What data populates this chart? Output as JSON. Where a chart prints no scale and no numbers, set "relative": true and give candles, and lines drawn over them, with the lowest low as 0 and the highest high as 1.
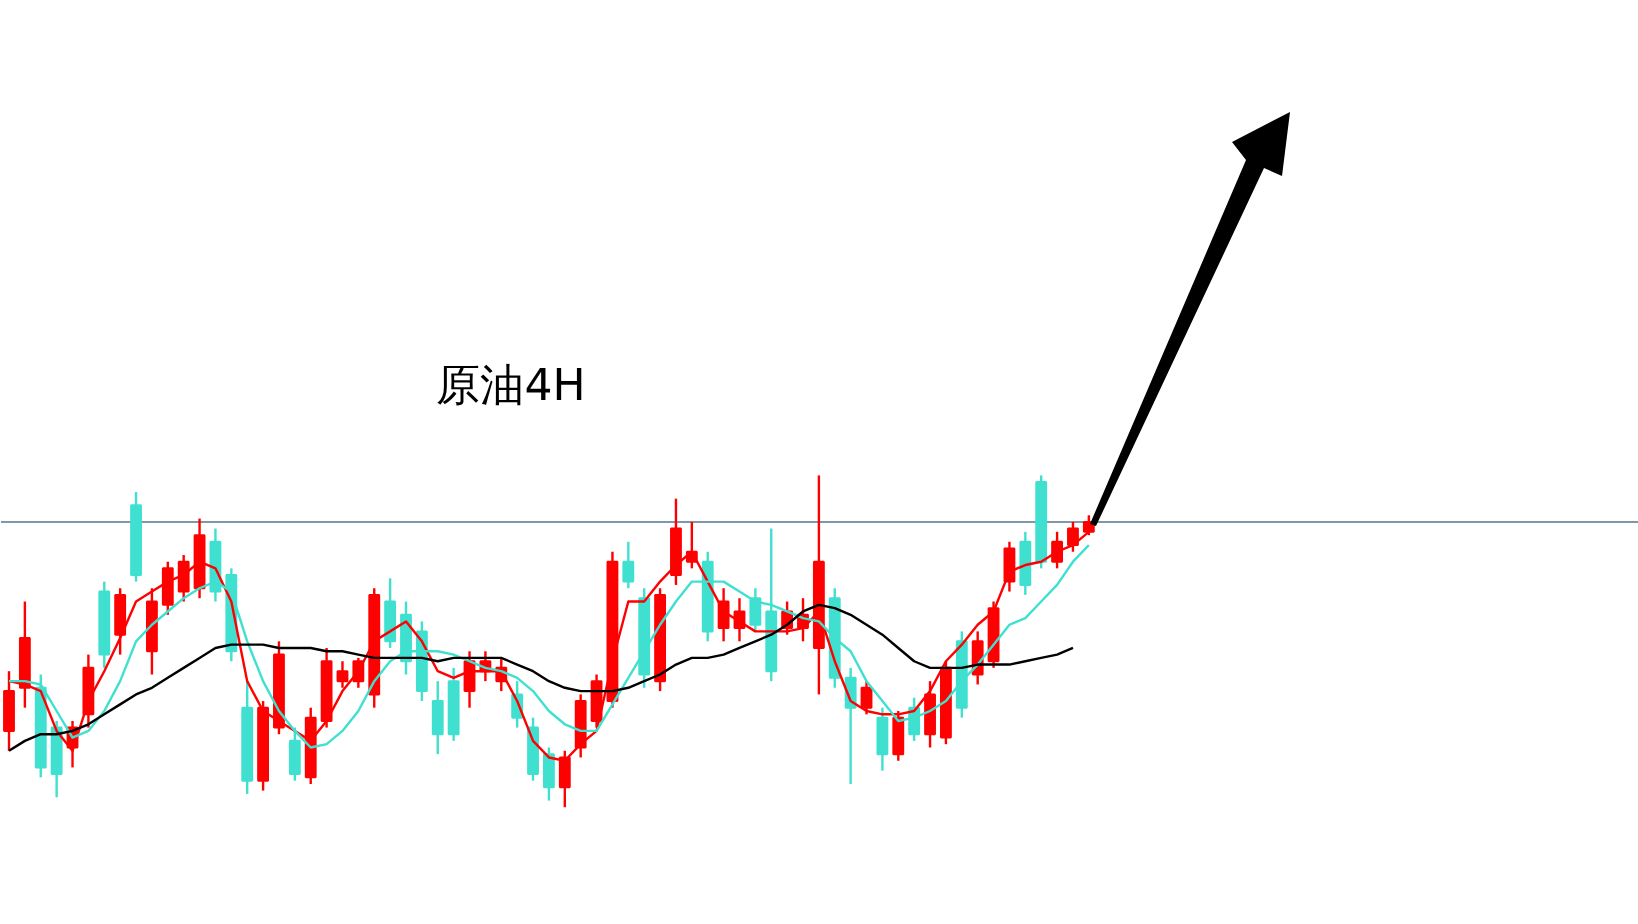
{
  "chart_data": {
    "type": "candlestick",
    "title": "原油4H",
    "relative": true,
    "categories": [
      null,
      null,
      null,
      null,
      null,
      null,
      null,
      null,
      null,
      null,
      null,
      null,
      null,
      null,
      null,
      null,
      null,
      null,
      null,
      null,
      null,
      null,
      null,
      null,
      null,
      null,
      null,
      null,
      null,
      null,
      null,
      null,
      null,
      null,
      null,
      null,
      null,
      null,
      null,
      null,
      null,
      null,
      null,
      null,
      null,
      null,
      null,
      null,
      null,
      null,
      null,
      null,
      null,
      null,
      null,
      null,
      null,
      null,
      null,
      null,
      null,
      null,
      null,
      null,
      null,
      null,
      null,
      null,
      null
    ],
    "ohlc": [
      [
        0.23,
        0.41,
        0.17,
        0.35
      ],
      [
        0.36,
        0.62,
        0.3,
        0.51
      ],
      [
        0.36,
        0.4,
        0.09,
        0.12
      ],
      [
        0.24,
        0.26,
        0.03,
        0.1
      ],
      [
        0.18,
        0.26,
        0.12,
        0.24
      ],
      [
        0.28,
        0.46,
        0.24,
        0.42
      ],
      [
        0.65,
        0.68,
        0.42,
        0.46
      ],
      [
        0.52,
        0.66,
        0.46,
        0.64
      ],
      [
        0.91,
        0.95,
        0.68,
        0.7
      ],
      [
        0.47,
        0.66,
        0.4,
        0.62
      ],
      [
        0.61,
        0.74,
        0.58,
        0.72
      ],
      [
        0.65,
        0.76,
        0.62,
        0.74
      ],
      [
        0.66,
        0.87,
        0.63,
        0.82
      ],
      [
        0.8,
        0.84,
        0.62,
        0.65
      ],
      [
        0.7,
        0.72,
        0.44,
        0.47
      ],
      [
        0.3,
        0.38,
        0.04,
        0.08
      ],
      [
        0.08,
        0.32,
        0.05,
        0.3
      ],
      [
        0.24,
        0.5,
        0.22,
        0.46
      ],
      [
        0.2,
        0.24,
        0.08,
        0.1
      ],
      [
        0.09,
        0.3,
        0.07,
        0.27
      ],
      [
        0.26,
        0.48,
        0.24,
        0.44
      ],
      [
        0.38,
        0.44,
        0.36,
        0.41
      ],
      [
        0.38,
        0.45,
        0.36,
        0.44
      ],
      [
        0.34,
        0.66,
        0.3,
        0.64
      ],
      [
        0.62,
        0.69,
        0.48,
        0.5
      ],
      [
        0.58,
        0.62,
        0.4,
        0.44
      ],
      [
        0.53,
        0.56,
        0.32,
        0.35
      ],
      [
        0.32,
        0.38,
        0.16,
        0.22
      ],
      [
        0.38,
        0.42,
        0.2,
        0.22
      ],
      [
        0.35,
        0.47,
        0.3,
        0.44
      ],
      [
        0.41,
        0.47,
        0.38,
        0.44
      ],
      [
        0.38,
        0.45,
        0.35,
        0.42
      ],
      [
        0.34,
        0.38,
        0.24,
        0.27
      ],
      [
        0.24,
        0.27,
        0.08,
        0.1
      ],
      [
        0.16,
        0.18,
        0.02,
        0.06
      ],
      [
        0.06,
        0.17,
        0.0,
        0.15
      ],
      [
        0.18,
        0.34,
        0.15,
        0.32
      ],
      [
        0.26,
        0.4,
        0.24,
        0.38
      ],
      [
        0.32,
        0.77,
        0.3,
        0.74
      ],
      [
        0.74,
        0.8,
        0.66,
        0.68
      ],
      [
        0.63,
        0.66,
        0.36,
        0.4
      ],
      [
        0.38,
        0.66,
        0.35,
        0.64
      ],
      [
        0.7,
        0.93,
        0.67,
        0.84
      ],
      [
        0.74,
        0.86,
        0.72,
        0.77
      ],
      [
        0.74,
        0.77,
        0.5,
        0.53
      ],
      [
        0.54,
        0.66,
        0.5,
        0.62
      ],
      [
        0.54,
        0.63,
        0.5,
        0.59
      ],
      [
        0.63,
        0.66,
        0.53,
        0.55
      ],
      [
        0.59,
        0.84,
        0.38,
        0.41
      ],
      [
        0.54,
        0.62,
        0.52,
        0.59
      ],
      [
        0.54,
        0.63,
        0.5,
        0.58
      ],
      [
        0.48,
        1.0,
        0.34,
        0.74
      ],
      [
        0.63,
        0.66,
        0.36,
        0.39
      ],
      [
        0.39,
        0.42,
        0.07,
        0.3
      ],
      [
        0.3,
        0.38,
        0.28,
        0.36
      ],
      [
        0.27,
        0.3,
        0.11,
        0.16
      ],
      [
        0.16,
        0.29,
        0.14,
        0.27
      ],
      [
        0.3,
        0.33,
        0.2,
        0.22
      ],
      [
        0.22,
        0.38,
        0.18,
        0.34
      ],
      [
        0.21,
        0.44,
        0.19,
        0.42
      ],
      [
        0.5,
        0.53,
        0.27,
        0.3
      ],
      [
        0.4,
        0.53,
        0.37,
        0.5
      ],
      [
        0.44,
        0.62,
        0.42,
        0.6
      ],
      [
        0.68,
        0.8,
        0.65,
        0.78
      ],
      [
        0.8,
        0.83,
        0.64,
        0.67
      ],
      [
        0.98,
        1.0,
        0.72,
        0.74
      ],
      [
        0.74,
        0.83,
        0.72,
        0.8
      ],
      [
        0.79,
        0.86,
        0.77,
        0.84
      ],
      [
        0.83,
        0.88,
        0.82,
        0.86
      ]
    ],
    "colors": [
      "#ff0000",
      "#ff0000",
      "#40e0d0",
      "#40e0d0",
      "#ff0000",
      "#ff0000",
      "#40e0d0",
      "#ff0000",
      "#40e0d0",
      "#ff0000",
      "#ff0000",
      "#ff0000",
      "#ff0000",
      "#40e0d0",
      "#40e0d0",
      "#40e0d0",
      "#ff0000",
      "#ff0000",
      "#40e0d0",
      "#ff0000",
      "#ff0000",
      "#ff0000",
      "#ff0000",
      "#ff0000",
      "#40e0d0",
      "#40e0d0",
      "#40e0d0",
      "#40e0d0",
      "#40e0d0",
      "#ff0000",
      "#ff0000",
      "#ff0000",
      "#40e0d0",
      "#40e0d0",
      "#40e0d0",
      "#ff0000",
      "#ff0000",
      "#ff0000",
      "#ff0000",
      "#40e0d0",
      "#40e0d0",
      "#ff0000",
      "#ff0000",
      "#ff0000",
      "#40e0d0",
      "#ff0000",
      "#ff0000",
      "#40e0d0",
      "#40e0d0",
      "#ff0000",
      "#ff0000",
      "#ff0000",
      "#40e0d0",
      "#40e0d0",
      "#ff0000",
      "#40e0d0",
      "#ff0000",
      "#40e0d0",
      "#ff0000",
      "#ff0000",
      "#40e0d0",
      "#ff0000",
      "#ff0000",
      "#ff0000",
      "#40e0d0",
      "#40e0d0",
      "#ff0000",
      "#ff0000",
      "#ff0000"
    ],
    "series": [
      {
        "type": "line",
        "color": "#ff0000",
        "values": [
          0.38,
          0.37,
          0.35,
          0.23,
          0.17,
          0.32,
          0.41,
          0.51,
          0.62,
          0.65,
          0.68,
          0.7,
          0.74,
          0.72,
          0.62,
          0.38,
          0.29,
          0.26,
          0.23,
          0.2,
          0.26,
          0.35,
          0.41,
          0.5,
          0.53,
          0.56,
          0.5,
          0.41,
          0.39,
          0.41,
          0.41,
          0.41,
          0.32,
          0.2,
          0.15,
          0.14,
          0.19,
          0.23,
          0.44,
          0.62,
          0.62,
          0.68,
          0.73,
          0.77,
          0.68,
          0.59,
          0.56,
          0.53,
          0.53,
          0.53,
          0.54,
          0.59,
          0.44,
          0.32,
          0.29,
          0.28,
          0.28,
          0.29,
          0.35,
          0.44,
          0.49,
          0.55,
          0.59,
          0.71,
          0.73,
          0.74,
          0.77,
          0.79,
          0.83
        ]
      },
      {
        "type": "line",
        "color": "#40e0d0",
        "values": [
          0.38,
          0.38,
          0.37,
          0.29,
          0.21,
          0.23,
          0.29,
          0.38,
          0.5,
          0.55,
          0.59,
          0.63,
          0.66,
          0.68,
          0.65,
          0.5,
          0.38,
          0.29,
          0.23,
          0.18,
          0.19,
          0.23,
          0.29,
          0.38,
          0.44,
          0.47,
          0.47,
          0.47,
          0.46,
          0.44,
          0.42,
          0.41,
          0.39,
          0.35,
          0.29,
          0.25,
          0.23,
          0.23,
          0.31,
          0.39,
          0.47,
          0.55,
          0.62,
          0.68,
          0.68,
          0.68,
          0.65,
          0.62,
          0.61,
          0.59,
          0.57,
          0.56,
          0.51,
          0.47,
          0.38,
          0.32,
          0.26,
          0.27,
          0.29,
          0.32,
          0.38,
          0.43,
          0.49,
          0.55,
          0.57,
          0.62,
          0.67,
          0.74,
          0.79
        ]
      },
      {
        "type": "line",
        "color": "#000000",
        "values": [
          0.17,
          0.2,
          0.22,
          0.22,
          0.23,
          0.25,
          0.28,
          0.31,
          0.34,
          0.36,
          0.39,
          0.42,
          0.45,
          0.48,
          0.49,
          0.49,
          0.49,
          0.48,
          0.48,
          0.48,
          0.47,
          0.47,
          0.46,
          0.45,
          0.45,
          0.45,
          0.45,
          0.44,
          0.45,
          0.45,
          0.45,
          0.45,
          0.43,
          0.41,
          0.38,
          0.36,
          0.35,
          0.35,
          0.35,
          0.36,
          0.38,
          0.4,
          0.43,
          0.45,
          0.45,
          0.46,
          0.48,
          0.5,
          0.52,
          0.55,
          0.59,
          0.61,
          0.6,
          0.58,
          0.55,
          0.52,
          0.48,
          0.44,
          0.42,
          0.42,
          0.42,
          0.43,
          0.43,
          0.43,
          0.44,
          0.45,
          0.46,
          0.48,
          null
        ]
      }
    ],
    "ref_lines": [
      {
        "axis": "y",
        "value": 0.86,
        "color": "#7f97a8"
      }
    ]
  }
}
